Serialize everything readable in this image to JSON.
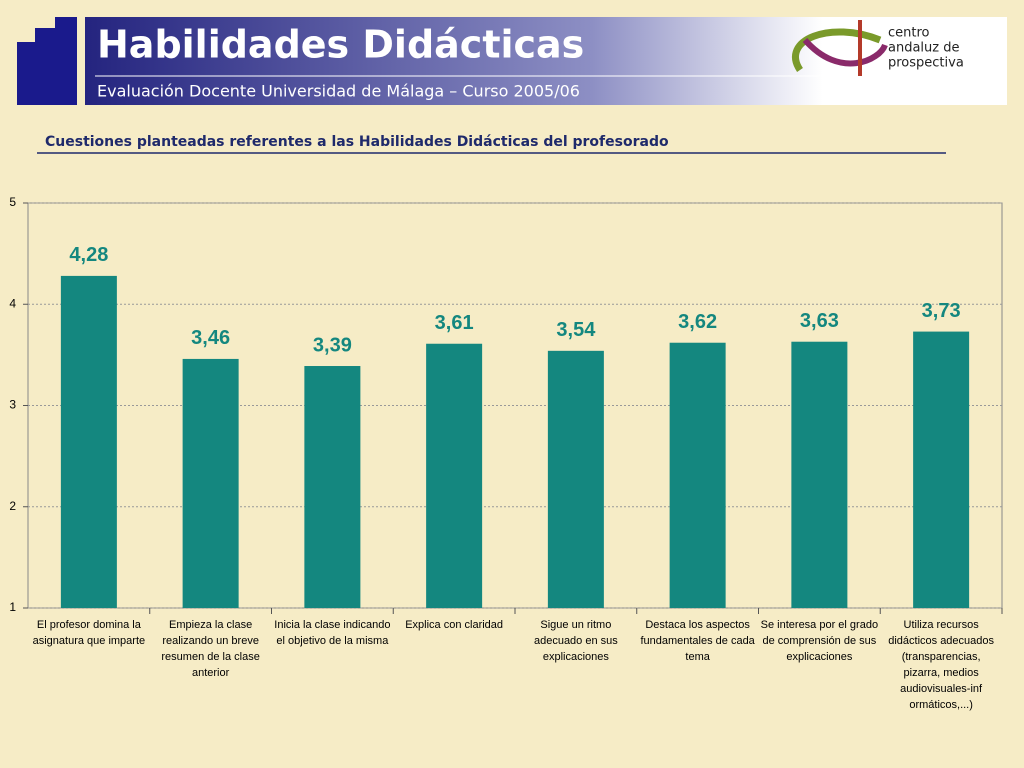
{
  "header": {
    "title": "Habilidades Didácticas",
    "subtitle": "Evaluación Docente Universidad de Málaga – Curso 2005/06",
    "logo": [
      "centro",
      "andaluz de",
      "prospectiva"
    ]
  },
  "chart_data": {
    "type": "bar",
    "title": "Cuestiones planteadas referentes a las Habilidades Didácticas del profesorado",
    "categories": [
      "El profesor domina la asignatura que imparte",
      "Empieza la clase realizando un breve resumen de la clase anterior",
      "Inicia la clase indicando el objetivo de la misma",
      "Explica con claridad",
      "Sigue un ritmo adecuado en sus explicaciones",
      "Destaca los aspectos fundamentales de cada tema",
      "Se interesa por el grado de comprensión de sus explicaciones",
      "Utiliza recursos didácticos adecuados (transparencias, pizarra, medios audiovisuales-inf ormáticos,...)"
    ],
    "values": [
      4.28,
      3.46,
      3.39,
      3.61,
      3.54,
      3.62,
      3.63,
      3.73
    ],
    "value_labels": [
      "4,28",
      "3,46",
      "3,39",
      "3,61",
      "3,54",
      "3,62",
      "3,63",
      "3,73"
    ],
    "color": "#14877f",
    "ylim": [
      1,
      5
    ],
    "yticks": [
      1,
      2,
      3,
      4,
      5
    ],
    "grid": true
  }
}
